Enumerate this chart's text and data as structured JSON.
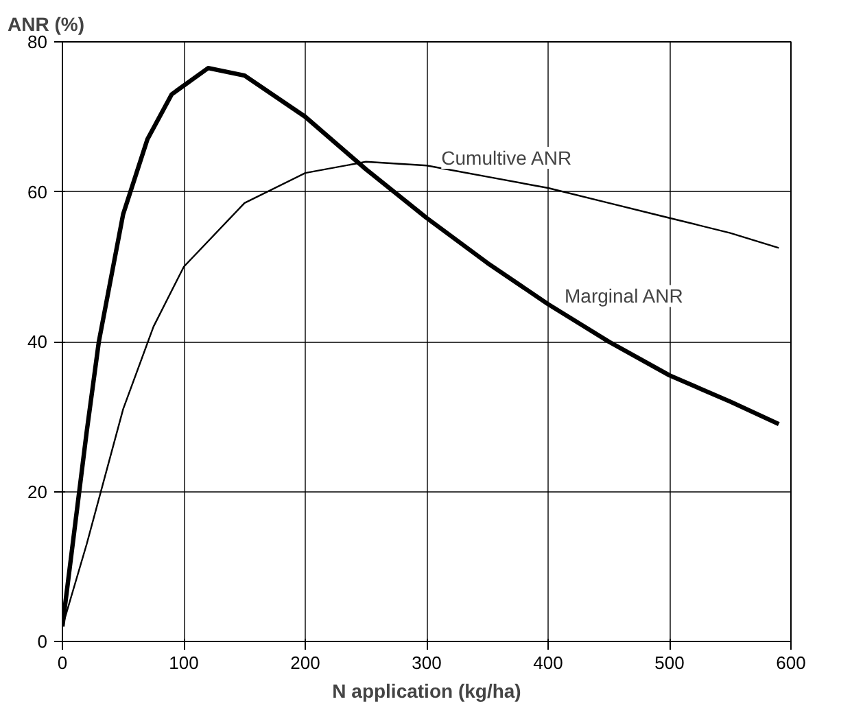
{
  "chart_data": {
    "type": "line",
    "ylabel": "ANR (%)",
    "xlabel": "N application (kg/ha)",
    "xlim": [
      0,
      600
    ],
    "ylim": [
      0,
      80
    ],
    "xticks": [
      0,
      100,
      200,
      300,
      400,
      500,
      600
    ],
    "yticks": [
      0,
      20,
      40,
      60,
      80
    ],
    "grid": true,
    "series": [
      {
        "name": "Marginal ANR",
        "color": "#000000",
        "x": [
          0,
          10,
          20,
          30,
          50,
          70,
          90,
          120,
          150,
          200,
          250,
          300,
          350,
          400,
          450,
          500,
          550,
          590
        ],
        "values": [
          2,
          15,
          28,
          40,
          57,
          67,
          73,
          76.5,
          75.5,
          70,
          63,
          56.5,
          50.5,
          45,
          40,
          35.5,
          32,
          29
        ]
      },
      {
        "name": "Cumultive ANR",
        "color": "#000000",
        "x": [
          0,
          20,
          50,
          75,
          100,
          150,
          200,
          250,
          300,
          350,
          400,
          450,
          500,
          550,
          590
        ],
        "values": [
          2,
          13,
          31,
          42,
          50,
          58.5,
          62.5,
          64,
          63.5,
          62,
          60.5,
          58.5,
          56.5,
          54.5,
          52.5
        ]
      }
    ]
  }
}
